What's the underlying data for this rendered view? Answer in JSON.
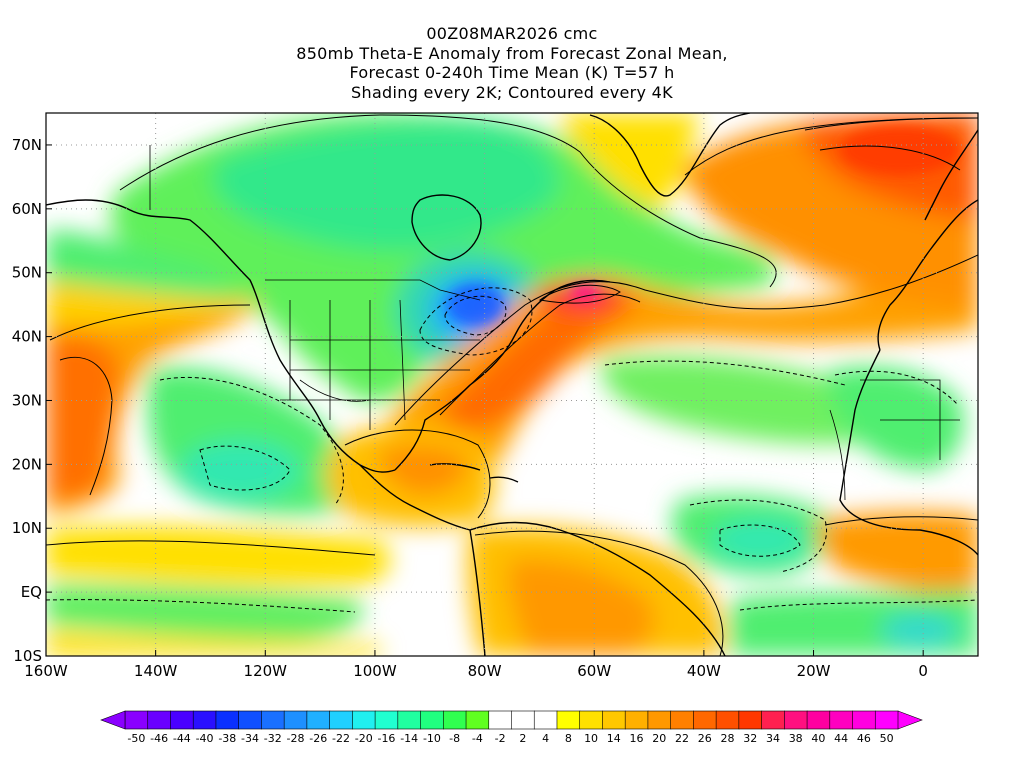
{
  "title": {
    "lines": [
      "00Z08MAR2026 cmc",
      "850mb Theta-E Anomaly from Forecast Zonal Mean,",
      "Forecast 0-240h Time Mean (K) T=57 h",
      "Shading every 2K; Contoured every 4K"
    ]
  },
  "map": {
    "lon_range": [
      -160,
      10
    ],
    "lat_range": [
      -10,
      75
    ],
    "lat_ticks": [
      {
        "value": 70,
        "label": "70N"
      },
      {
        "value": 60,
        "label": "60N"
      },
      {
        "value": 50,
        "label": "50N"
      },
      {
        "value": 40,
        "label": "40N"
      },
      {
        "value": 30,
        "label": "30N"
      },
      {
        "value": 20,
        "label": "20N"
      },
      {
        "value": 10,
        "label": "10N"
      },
      {
        "value": 0,
        "label": "EQ"
      },
      {
        "value": -10,
        "label": "10S"
      }
    ],
    "lon_ticks": [
      {
        "value": -160,
        "label": "160W"
      },
      {
        "value": -140,
        "label": "140W"
      },
      {
        "value": -120,
        "label": "120W"
      },
      {
        "value": -100,
        "label": "100W"
      },
      {
        "value": -80,
        "label": "80W"
      },
      {
        "value": -60,
        "label": "60W"
      },
      {
        "value": -40,
        "label": "40W"
      },
      {
        "value": -20,
        "label": "20W"
      },
      {
        "value": 0,
        "label": "0"
      }
    ],
    "grid": true,
    "anomaly_regions": [
      {
        "region": "Canada / Hudson Bay",
        "level": "cool",
        "value": -10
      },
      {
        "region": "Great Lakes",
        "level": "cold",
        "value": -28
      },
      {
        "region": "Northwest Atlantic jet plume",
        "level": "very warm",
        "value": 36
      },
      {
        "region": "Northeast Atlantic / Europe",
        "level": "warm",
        "value": 24
      },
      {
        "region": "Eastern North Pacific",
        "level": "warm",
        "value": 18
      },
      {
        "region": "Subtropical Pacific",
        "level": "cool",
        "value": -16
      },
      {
        "region": "Caribbean",
        "level": "warm",
        "value": 12
      },
      {
        "region": "South America",
        "level": "warm",
        "value": 8
      },
      {
        "region": "Tropical Atlantic",
        "level": "cool",
        "value": -14
      },
      {
        "region": "West Africa coast",
        "level": "warm",
        "value": 14
      }
    ]
  },
  "colorbar": {
    "labels": [
      "-50",
      "-46",
      "-44",
      "-40",
      "-38",
      "-34",
      "-32",
      "-28",
      "-26",
      "-22",
      "-20",
      "-16",
      "-14",
      "-10",
      "-8",
      "-4",
      "-2",
      "2",
      "4",
      "8",
      "10",
      "14",
      "16",
      "20",
      "22",
      "26",
      "28",
      "32",
      "34",
      "38",
      "40",
      "44",
      "46",
      "50"
    ],
    "colors": [
      "#8a00ff",
      "#6a00ff",
      "#4a00ff",
      "#2a10ff",
      "#0a30ff",
      "#1050ff",
      "#1a70ff",
      "#1e90ff",
      "#20b0ff",
      "#20d0ff",
      "#20f0f0",
      "#20ffd0",
      "#20ffa0",
      "#20ff80",
      "#30ff50",
      "#60ff20",
      "#ffffff",
      "#ffffff",
      "#ffffff",
      "#ffff00",
      "#ffe000",
      "#ffc800",
      "#ffb000",
      "#ff9800",
      "#ff8000",
      "#ff6800",
      "#ff5000",
      "#ff3800",
      "#ff2050",
      "#ff1080",
      "#ff00a0",
      "#ff00c0",
      "#ff00e0",
      "#ff00ff"
    ]
  }
}
